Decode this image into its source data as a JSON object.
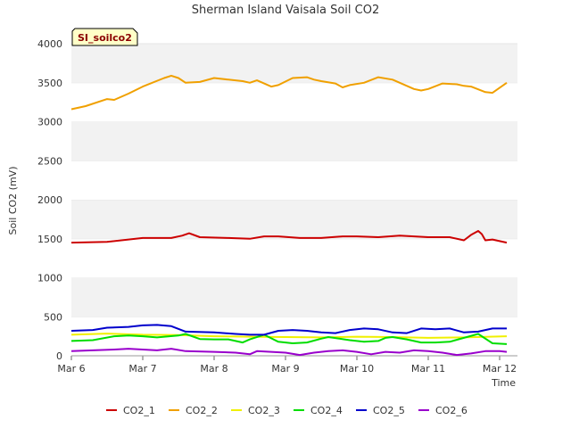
{
  "chart_data": {
    "type": "line",
    "title": "Sherman Island Vaisala Soil CO2",
    "badge": "SI_soilco2",
    "xlabel": "Time",
    "ylabel": "Soil CO2 (mV)",
    "x_ticks": [
      "Mar 6",
      "Mar 7",
      "Mar 8",
      "Mar 9",
      "Mar 10",
      "Mar 11",
      "Mar 12"
    ],
    "y_ticks": [
      0,
      500,
      1000,
      1500,
      2000,
      2500,
      3000,
      3500,
      4000
    ],
    "xlim": [
      0,
      6.2
    ],
    "ylim": [
      0,
      4000
    ],
    "x_units": "days since Mar 6",
    "grid": "horizontal-bands",
    "legend_position": "bottom",
    "series": [
      {
        "name": "CO2_1",
        "color": "#cc0000",
        "x": [
          0,
          0.5,
          1.0,
          1.4,
          1.55,
          1.65,
          1.8,
          2.2,
          2.5,
          2.7,
          2.9,
          3.2,
          3.5,
          3.8,
          4.0,
          4.3,
          4.6,
          4.8,
          5.0,
          5.3,
          5.5,
          5.6,
          5.7,
          5.75,
          5.8,
          5.9,
          6.1
        ],
        "y": [
          1450,
          1460,
          1510,
          1510,
          1540,
          1570,
          1520,
          1510,
          1500,
          1530,
          1530,
          1510,
          1510,
          1530,
          1530,
          1520,
          1540,
          1530,
          1520,
          1520,
          1480,
          1550,
          1600,
          1560,
          1480,
          1490,
          1450
        ]
      },
      {
        "name": "CO2_2",
        "color": "#f0a000",
        "x": [
          0,
          0.2,
          0.5,
          0.6,
          0.8,
          1.0,
          1.3,
          1.4,
          1.5,
          1.6,
          1.8,
          2.0,
          2.2,
          2.4,
          2.5,
          2.6,
          2.8,
          2.9,
          3.1,
          3.3,
          3.4,
          3.5,
          3.7,
          3.8,
          3.9,
          4.1,
          4.3,
          4.5,
          4.6,
          4.8,
          4.9,
          5.0,
          5.2,
          5.4,
          5.5,
          5.6,
          5.8,
          5.9,
          6.1
        ],
        "y": [
          3160,
          3200,
          3290,
          3280,
          3360,
          3450,
          3560,
          3590,
          3560,
          3500,
          3510,
          3560,
          3540,
          3520,
          3500,
          3530,
          3450,
          3470,
          3560,
          3570,
          3540,
          3520,
          3490,
          3440,
          3470,
          3500,
          3570,
          3540,
          3500,
          3420,
          3400,
          3420,
          3490,
          3480,
          3460,
          3450,
          3380,
          3370,
          3500
        ]
      },
      {
        "name": "CO2_3",
        "color": "#f0f000",
        "x": [
          0,
          0.5,
          1.0,
          1.5,
          2.0,
          2.5,
          3.0,
          3.5,
          4.0,
          4.5,
          5.0,
          5.5,
          6.1
        ],
        "y": [
          270,
          285,
          270,
          265,
          250,
          245,
          240,
          235,
          245,
          240,
          230,
          235,
          250
        ]
      },
      {
        "name": "CO2_4",
        "color": "#00dd00",
        "x": [
          0,
          0.3,
          0.6,
          0.8,
          1.0,
          1.2,
          1.5,
          1.6,
          1.8,
          2.0,
          2.2,
          2.4,
          2.5,
          2.7,
          2.9,
          3.1,
          3.3,
          3.5,
          3.6,
          3.9,
          4.1,
          4.3,
          4.4,
          4.5,
          4.7,
          4.9,
          5.1,
          5.3,
          5.5,
          5.7,
          5.9,
          6.1
        ],
        "y": [
          190,
          200,
          250,
          260,
          250,
          235,
          260,
          280,
          215,
          210,
          210,
          170,
          210,
          270,
          180,
          160,
          170,
          220,
          240,
          200,
          180,
          190,
          230,
          240,
          210,
          170,
          170,
          180,
          230,
          280,
          160,
          150
        ]
      },
      {
        "name": "CO2_5",
        "color": "#0000cc",
        "x": [
          0,
          0.3,
          0.5,
          0.8,
          1.0,
          1.2,
          1.4,
          1.6,
          2.0,
          2.3,
          2.5,
          2.7,
          2.9,
          3.1,
          3.3,
          3.5,
          3.7,
          3.9,
          4.1,
          4.3,
          4.5,
          4.7,
          4.9,
          5.1,
          5.3,
          5.5,
          5.7,
          5.9,
          6.1
        ],
        "y": [
          320,
          330,
          360,
          370,
          390,
          395,
          380,
          310,
          300,
          280,
          270,
          270,
          320,
          330,
          320,
          300,
          290,
          330,
          350,
          340,
          300,
          290,
          350,
          340,
          350,
          300,
          310,
          350,
          350
        ]
      },
      {
        "name": "CO2_6",
        "color": "#9900cc",
        "x": [
          0,
          0.3,
          0.6,
          0.8,
          1.0,
          1.2,
          1.4,
          1.6,
          2.0,
          2.3,
          2.5,
          2.6,
          2.8,
          3.0,
          3.2,
          3.4,
          3.6,
          3.8,
          4.0,
          4.2,
          4.4,
          4.6,
          4.8,
          5.0,
          5.2,
          5.4,
          5.6,
          5.8,
          6.0,
          6.1
        ],
        "y": [
          60,
          70,
          80,
          90,
          80,
          70,
          90,
          60,
          50,
          40,
          20,
          60,
          50,
          40,
          10,
          40,
          60,
          70,
          50,
          20,
          50,
          40,
          70,
          60,
          40,
          10,
          30,
          60,
          60,
          50
        ]
      }
    ]
  }
}
